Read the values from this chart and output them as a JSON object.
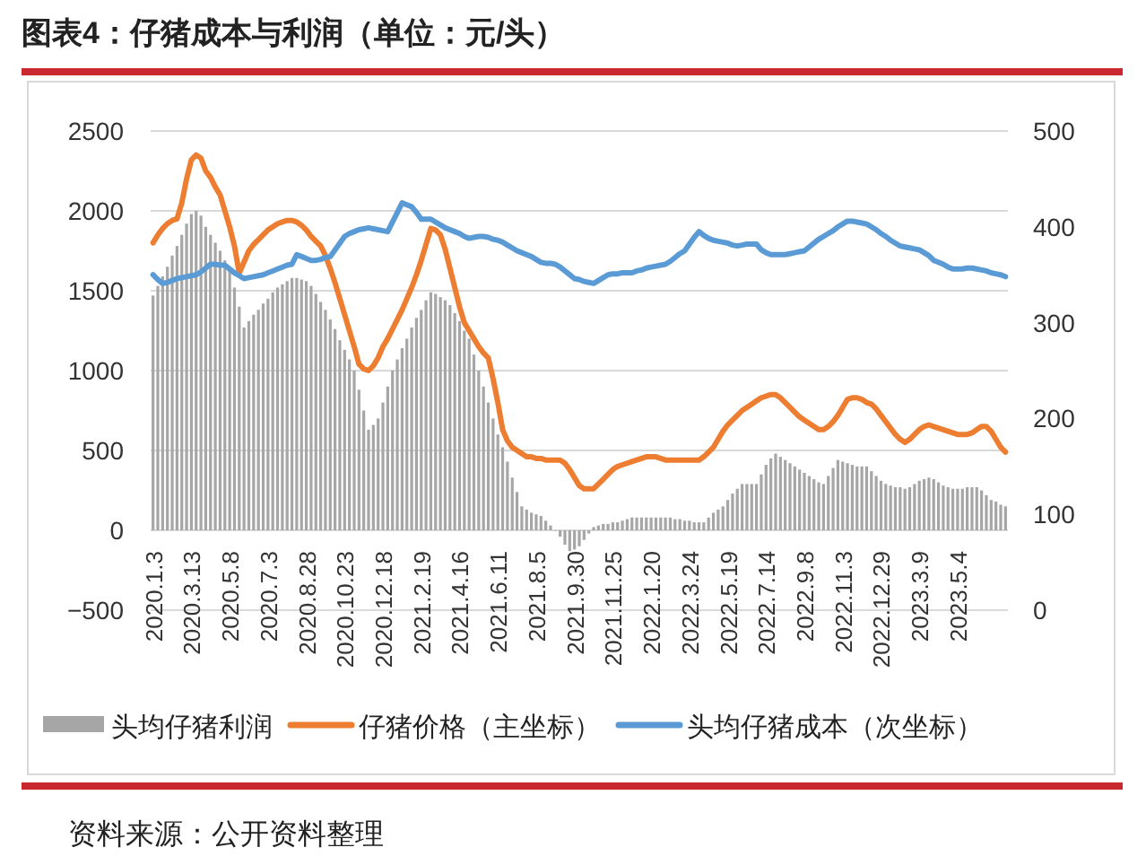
{
  "chart_data": {
    "type": "bar",
    "title": "图表4：仔猪成本与利润（单位：元/头）",
    "categories": [
      "2020.1.3",
      null,
      null,
      null,
      null,
      null,
      null,
      null,
      "2020.3.13",
      null,
      null,
      null,
      null,
      null,
      null,
      null,
      "2020.5.8",
      null,
      null,
      null,
      null,
      null,
      null,
      null,
      "2020.7.3",
      null,
      null,
      null,
      null,
      null,
      null,
      null,
      "2020.8.28",
      null,
      null,
      null,
      null,
      null,
      null,
      null,
      "2020.10.23",
      null,
      null,
      null,
      null,
      null,
      null,
      null,
      "2020.12.18",
      null,
      null,
      null,
      null,
      null,
      null,
      null,
      "2021.2.19",
      null,
      null,
      null,
      null,
      null,
      null,
      null,
      "2021.4.16",
      null,
      null,
      null,
      null,
      null,
      null,
      null,
      "2021.6.11",
      null,
      null,
      null,
      null,
      null,
      null,
      null,
      "2021.8.5",
      null,
      null,
      null,
      null,
      null,
      null,
      null,
      "2021.9.30",
      null,
      null,
      null,
      null,
      null,
      null,
      null,
      "2021.11.25",
      null,
      null,
      null,
      null,
      null,
      null,
      null,
      "2022.1.20",
      null,
      null,
      null,
      null,
      null,
      null,
      null,
      "2022.3.24",
      null,
      null,
      null,
      null,
      null,
      null,
      null,
      "2022.5.19",
      null,
      null,
      null,
      null,
      null,
      null,
      null,
      "2022.7.14",
      null,
      null,
      null,
      null,
      null,
      null,
      null,
      "2022.9.8",
      null,
      null,
      null,
      null,
      null,
      null,
      null,
      "2022.11.3",
      null,
      null,
      null,
      null,
      null,
      null,
      null,
      "2022.12.29",
      null,
      null,
      null,
      null,
      null,
      null,
      null,
      "2023.3.9",
      null,
      null,
      null,
      null,
      null,
      null,
      null,
      "2023.5.4",
      null,
      null,
      null,
      null,
      null,
      null,
      null,
      null,
      null,
      null
    ],
    "series": [
      {
        "name": "头均仔猪利润",
        "color": "#a6a6a6",
        "values": [
          1470,
          1530,
          1590,
          1650,
          1720,
          1780,
          1850,
          1920,
          1980,
          2000,
          1970,
          1900,
          1850,
          1800,
          1750,
          1690,
          1640,
          1520,
          1400,
          1270,
          1310,
          1350,
          1380,
          1420,
          1450,
          1490,
          1520,
          1540,
          1560,
          1580,
          1580,
          1570,
          1560,
          1530,
          1480,
          1430,
          1380,
          1320,
          1260,
          1190,
          1130,
          1070,
          1000,
          880,
          750,
          630,
          660,
          700,
          800,
          900,
          1000,
          1070,
          1140,
          1200,
          1270,
          1330,
          1380,
          1440,
          1490,
          1480,
          1460,
          1440,
          1410,
          1360,
          1310,
          1250,
          1200,
          1100,
          1000,
          900,
          800,
          700,
          600,
          520,
          430,
          330,
          240,
          150,
          130,
          110,
          100,
          90,
          60,
          30,
          0,
          -40,
          -90,
          -130,
          -120,
          -100,
          -60,
          -20,
          20,
          30,
          40,
          40,
          50,
          50,
          60,
          70,
          80,
          80,
          80,
          80,
          80,
          80,
          80,
          80,
          80,
          70,
          70,
          60,
          60,
          50,
          50,
          50,
          80,
          110,
          130,
          150,
          190,
          230,
          260,
          290,
          290,
          290,
          290,
          350,
          410,
          450,
          480,
          460,
          440,
          420,
          400,
          380,
          360,
          340,
          320,
          300,
          290,
          340,
          390,
          440,
          430,
          420,
          410,
          400,
          400,
          400,
          370,
          340,
          310,
          290,
          280,
          270,
          270,
          260,
          270,
          290,
          310,
          320,
          330,
          320,
          300,
          280,
          270,
          260,
          260,
          260,
          270,
          270,
          270,
          250,
          220,
          190,
          180,
          160,
          150
        ]
      },
      {
        "name": "仔猪价格（主坐标）",
        "type": "line",
        "color": "#ed7d31",
        "values": [
          1800,
          1850,
          1890,
          1920,
          1940,
          1950,
          2050,
          2200,
          2320,
          2350,
          2330,
          2250,
          2210,
          2150,
          2100,
          2000,
          1900,
          1780,
          1610,
          1680,
          1750,
          1790,
          1820,
          1850,
          1880,
          1900,
          1920,
          1930,
          1940,
          1940,
          1930,
          1910,
          1880,
          1840,
          1810,
          1780,
          1720,
          1640,
          1550,
          1450,
          1350,
          1250,
          1150,
          1040,
          1010,
          1000,
          1030,
          1080,
          1150,
          1200,
          1260,
          1320,
          1380,
          1450,
          1520,
          1600,
          1690,
          1790,
          1890,
          1880,
          1850,
          1760,
          1640,
          1520,
          1400,
          1300,
          1250,
          1200,
          1150,
          1110,
          1080,
          950,
          800,
          630,
          560,
          520,
          500,
          480,
          460,
          460,
          450,
          450,
          440,
          440,
          440,
          440,
          420,
          380,
          330,
          280,
          260,
          260,
          260,
          290,
          320,
          350,
          380,
          400,
          410,
          420,
          430,
          440,
          450,
          460,
          460,
          460,
          450,
          440,
          440,
          440,
          440,
          440,
          440,
          440,
          440,
          460,
          490,
          520,
          570,
          620,
          660,
          690,
          720,
          750,
          770,
          790,
          810,
          830,
          840,
          850,
          850,
          830,
          800,
          770,
          740,
          710,
          690,
          670,
          650,
          630,
          630,
          650,
          680,
          720,
          770,
          820,
          830,
          830,
          820,
          800,
          790,
          760,
          720,
          680,
          640,
          600,
          570,
          550,
          570,
          600,
          630,
          650,
          660,
          650,
          640,
          630,
          620,
          610,
          600,
          600,
          600,
          610,
          630,
          650,
          650,
          620,
          570,
          520,
          490
        ]
      },
      {
        "name": "头均仔猪成本（次坐标）",
        "type": "line",
        "axis": "y2",
        "color": "#5b9bd5",
        "values": [
          350,
          345,
          341,
          342,
          344,
          346,
          347,
          348,
          349,
          350,
          353,
          357,
          361,
          361,
          360,
          360,
          356,
          352,
          349,
          346,
          347,
          348,
          349,
          350,
          352,
          354,
          356,
          358,
          360,
          361,
          371,
          369,
          367,
          365,
          365,
          366,
          368,
          369,
          376,
          383,
          390,
          393,
          395,
          397,
          398,
          399,
          398,
          397,
          396,
          395,
          405,
          415,
          425,
          423,
          421,
          415,
          408,
          408,
          408,
          405,
          402,
          399,
          397,
          395,
          393,
          390,
          388,
          389,
          390,
          390,
          389,
          387,
          386,
          384,
          381,
          378,
          375,
          373,
          371,
          369,
          366,
          363,
          362,
          362,
          361,
          358,
          354,
          350,
          346,
          345,
          343,
          342,
          341,
          344,
          347,
          350,
          351,
          351,
          352,
          352,
          352,
          354,
          355,
          357,
          358,
          359,
          360,
          361,
          364,
          368,
          372,
          375,
          382,
          389,
          395,
          391,
          388,
          386,
          385,
          384,
          383,
          381,
          380,
          381,
          382,
          382,
          382,
          376,
          373,
          371,
          371,
          371,
          371,
          372,
          373,
          374,
          375,
          379,
          383,
          387,
          390,
          393,
          396,
          400,
          403,
          406,
          406,
          405,
          404,
          403,
          400,
          397,
          393,
          390,
          386,
          383,
          380,
          379,
          378,
          377,
          376,
          373,
          370,
          365,
          363,
          361,
          358,
          356,
          356,
          356,
          357,
          357,
          356,
          355,
          354,
          352,
          351,
          350,
          348
        ]
      }
    ],
    "ylim": [
      -500,
      2500
    ],
    "yticks": [
      -500,
      0,
      500,
      1000,
      1500,
      2000,
      2500
    ],
    "y2lim": [
      0,
      500
    ],
    "y2ticks": [
      0,
      100,
      200,
      300,
      400,
      500
    ],
    "grid": "y",
    "legend": "bottom",
    "annotations": [
      "资料来源：公开资料整理"
    ]
  }
}
